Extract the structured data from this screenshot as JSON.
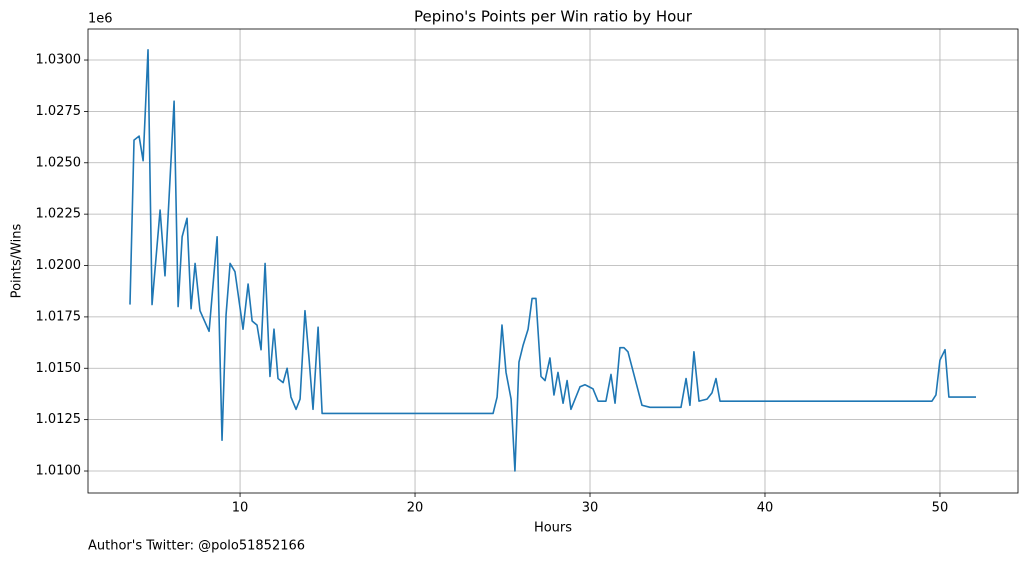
{
  "chart_data": {
    "type": "line",
    "title": "Pepino's Points per Win ratio by Hour",
    "xlabel": "Hours",
    "ylabel": "Points/Wins",
    "y_offset_label": "1e6",
    "footnote": "Author's Twitter: @polo51852166",
    "grid": true,
    "xlim": [
      1.31,
      54.46
    ],
    "ylim": [
      1.00893,
      1.03151
    ],
    "xticks": [
      10,
      20,
      30,
      40,
      50
    ],
    "yticks": [
      {
        "value": 1.01,
        "label": "1.0100"
      },
      {
        "value": 1.0125,
        "label": "1.0125"
      },
      {
        "value": 1.015,
        "label": "1.0150"
      },
      {
        "value": 1.0175,
        "label": "1.0175"
      },
      {
        "value": 1.02,
        "label": "1.0200"
      },
      {
        "value": 1.0225,
        "label": "1.0225"
      },
      {
        "value": 1.025,
        "label": "1.0250"
      },
      {
        "value": 1.0275,
        "label": "1.0275"
      },
      {
        "value": 1.03,
        "label": "1.0300"
      }
    ],
    "x": [
      3.71,
      3.94,
      4.23,
      4.46,
      4.74,
      4.97,
      5.43,
      5.71,
      6.23,
      6.46,
      6.69,
      6.97,
      7.2,
      7.43,
      7.71,
      8.23,
      8.69,
      8.97,
      9.2,
      9.43,
      9.71,
      10.17,
      10.46,
      10.69,
      10.97,
      11.2,
      11.43,
      11.71,
      11.94,
      12.17,
      12.46,
      12.69,
      12.91,
      13.2,
      13.43,
      13.71,
      13.94,
      14.17,
      14.46,
      14.69,
      24.46,
      24.69,
      24.97,
      25.2,
      25.49,
      25.71,
      25.94,
      26.17,
      26.46,
      26.69,
      26.91,
      27.2,
      27.43,
      27.71,
      27.94,
      28.17,
      28.46,
      28.69,
      28.91,
      29.43,
      29.71,
      29.94,
      30.17,
      30.46,
      30.91,
      31.2,
      31.43,
      31.71,
      31.94,
      32.17,
      32.97,
      33.43,
      35.2,
      35.49,
      35.71,
      35.94,
      36.23,
      36.69,
      36.97,
      37.2,
      37.43,
      49.54,
      49.77,
      50.0,
      50.29,
      50.51,
      52.06
    ],
    "series": [
      {
        "name": "Points/Wins",
        "color": "#1f77b4",
        "values": [
          1.0181,
          1.0261,
          1.0263,
          1.0251,
          1.0305,
          1.0181,
          1.0227,
          1.0195,
          1.028,
          1.018,
          1.0214,
          1.0223,
          1.0179,
          1.0201,
          1.0178,
          1.0168,
          1.0214,
          1.0115,
          1.0176,
          1.0201,
          1.0197,
          1.0169,
          1.0191,
          1.0173,
          1.0171,
          1.0159,
          1.0201,
          1.0146,
          1.0169,
          1.0145,
          1.0143,
          1.015,
          1.0136,
          1.013,
          1.0135,
          1.0178,
          1.0155,
          1.013,
          1.017,
          1.0128,
          1.0128,
          1.0136,
          1.0171,
          1.0148,
          1.0135,
          1.01,
          1.0153,
          1.0161,
          1.0169,
          1.0184,
          1.0184,
          1.0146,
          1.0144,
          1.0155,
          1.0137,
          1.0148,
          1.0133,
          1.0144,
          1.013,
          1.0141,
          1.0142,
          1.0141,
          1.014,
          1.0134,
          1.0134,
          1.0147,
          1.0133,
          1.016,
          1.016,
          1.0158,
          1.0132,
          1.0131,
          1.0131,
          1.0145,
          1.0132,
          1.0158,
          1.0134,
          1.0135,
          1.0138,
          1.0145,
          1.0134,
          1.0134,
          1.0137,
          1.0154,
          1.0159,
          1.0136,
          1.0136
        ]
      }
    ]
  }
}
